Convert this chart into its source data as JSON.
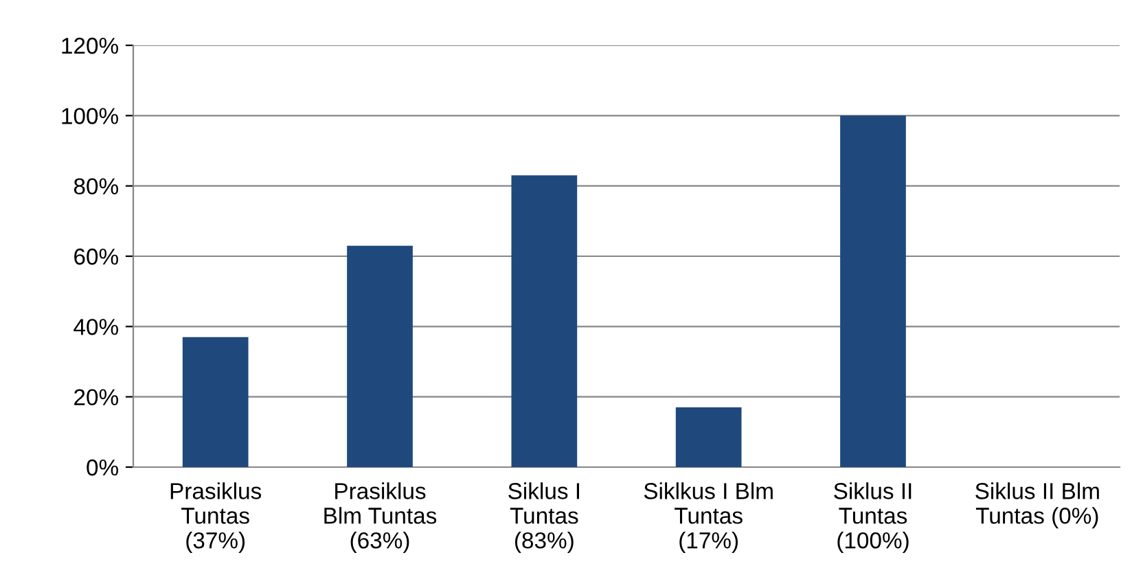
{
  "chart_data": {
    "type": "bar",
    "categories": [
      "Prasiklus\nTuntas\n(37%)",
      "Prasiklus\nBlm Tuntas\n(63%)",
      "Siklus I\nTuntas\n(83%)",
      "Siklkus I Blm\nTuntas\n(17%)",
      "Siklus II\nTuntas\n(100%)",
      "Siklus II Blm\nTuntas (0%)"
    ],
    "values": [
      37,
      63,
      83,
      17,
      100,
      0
    ],
    "color": "#1f497d",
    "ylim": [
      0,
      120
    ],
    "yticks": [
      {
        "value": 0,
        "label": "0%"
      },
      {
        "value": 20,
        "label": "20%"
      },
      {
        "value": 40,
        "label": "40%"
      },
      {
        "value": 60,
        "label": "60%"
      },
      {
        "value": 80,
        "label": "80%"
      },
      {
        "value": 100,
        "label": "100%"
      },
      {
        "value": 120,
        "label": "120%"
      }
    ],
    "grid": "y"
  }
}
